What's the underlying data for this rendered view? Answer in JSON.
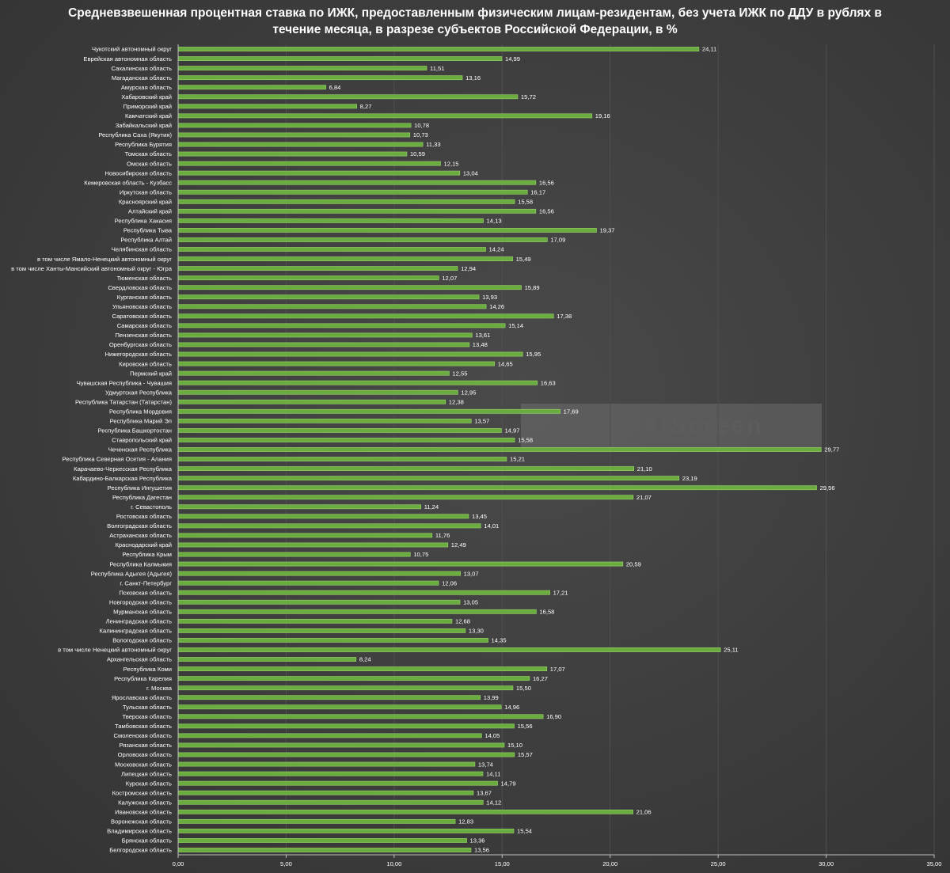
{
  "colors": {
    "bar": "#6aac3f",
    "bar_edge": "#9ad36a",
    "grid": "#4f4f4f",
    "axis": "#bfbfbf",
    "watermark_bg": "#8a8a8a"
  },
  "watermark": "MarketScreen",
  "chart_data": {
    "type": "bar",
    "orientation": "horizontal",
    "title": "Средневзвешенная процентная ставка по ИЖК, предоставленным физическим лицам-резидентам, без учета ИЖК по ДДУ в рублях в течение месяца, в разрезе субъектов Российской Федерации, в %",
    "xlim": [
      0,
      35
    ],
    "xticks": [
      "0,00",
      "5,00",
      "10,00",
      "15,00",
      "20,00",
      "25,00",
      "30,00",
      "35,00"
    ],
    "grid": true,
    "legend": "none",
    "categories": [
      "Чукотский автономный округ",
      "Еврейская автономная область",
      "Сахалинская область",
      "Магаданская область",
      "Амурская область",
      "Хабаровский край",
      "Приморский край",
      "Камчатский край",
      "Забайкальский край",
      "Республика Саха (Якутия)",
      "Республика Бурятия",
      "Томская область",
      "Омская область",
      "Новосибирская область",
      "Кемеровская область - Кузбасс",
      "Иркутская область",
      "Красноярский край",
      "Алтайский край",
      "Республика Хакасия",
      "Республика Тыва",
      "Республика Алтай",
      "Челябинская область",
      "в том числе Ямало-Ненецкий автономный округ",
      "в том числе Ханты-Мансийский автономный округ - Югра",
      "Тюменская область",
      "Свердловская область",
      "Курганская область",
      "Ульяновская область",
      "Саратовская область",
      "Самарская область",
      "Пензенская область",
      "Оренбургская область",
      "Нижегородская область",
      "Кировская область",
      "Пермский край",
      "Чувашская Республика - Чувашия",
      "Удмуртская Республика",
      "Республика Татарстан (Татарстан)",
      "Республика Мордовия",
      "Республика Марий Эл",
      "Республика Башкортостан",
      "Ставропольский край",
      "Чеченская Республика",
      "Республика Северная Осетия - Алания",
      "Карачаево-Черкесская Республика",
      "Кабардино-Балкарская Республика",
      "Республика Ингушетия",
      "Республика Дагестан",
      "г. Севастополь",
      "Ростовская область",
      "Волгоградская область",
      "Астраханская область",
      "Краснодарский край",
      "Республика Крым",
      "Республика Калмыкия",
      "Республика Адыгея (Адыгея)",
      "г. Санкт-Петербург",
      "Псковская область",
      "Новгородская область",
      "Мурманская область",
      "Ленинградская область",
      "Калининградская область",
      "Вологодская область",
      "в том числе Ненецкий автономный округ",
      "Архангельская область",
      "Республика Коми",
      "Республика Карелия",
      "г. Москва",
      "Ярославская область",
      "Тульская область",
      "Тверская область",
      "Тамбовская область",
      "Смоленская область",
      "Рязанская область",
      "Орловская область",
      "Московская область",
      "Липецкая область",
      "Курская область",
      "Костромская область",
      "Калужская область",
      "Ивановская область",
      "Воронежская область",
      "Владимирская область",
      "Брянская область",
      "Белгородская область"
    ],
    "values": [
      24.11,
      14.99,
      11.51,
      13.16,
      6.84,
      15.72,
      8.27,
      19.16,
      10.78,
      10.73,
      11.33,
      10.59,
      12.15,
      13.04,
      16.56,
      16.17,
      15.58,
      16.56,
      14.13,
      19.37,
      17.09,
      14.24,
      15.49,
      12.94,
      12.07,
      15.89,
      13.93,
      14.26,
      17.38,
      15.14,
      13.61,
      13.48,
      15.95,
      14.65,
      12.55,
      16.63,
      12.95,
      12.38,
      17.69,
      13.57,
      14.97,
      15.58,
      29.77,
      15.21,
      21.1,
      23.19,
      29.56,
      21.07,
      11.24,
      13.45,
      14.01,
      11.76,
      12.49,
      10.75,
      20.59,
      13.07,
      12.06,
      17.21,
      13.05,
      16.58,
      12.68,
      13.3,
      14.35,
      25.11,
      8.24,
      17.07,
      16.27,
      15.5,
      13.99,
      14.96,
      16.9,
      15.56,
      14.05,
      15.1,
      15.57,
      13.74,
      14.11,
      14.79,
      13.67,
      14.12,
      21.06,
      12.83,
      15.54,
      13.36,
      13.56
    ]
  }
}
